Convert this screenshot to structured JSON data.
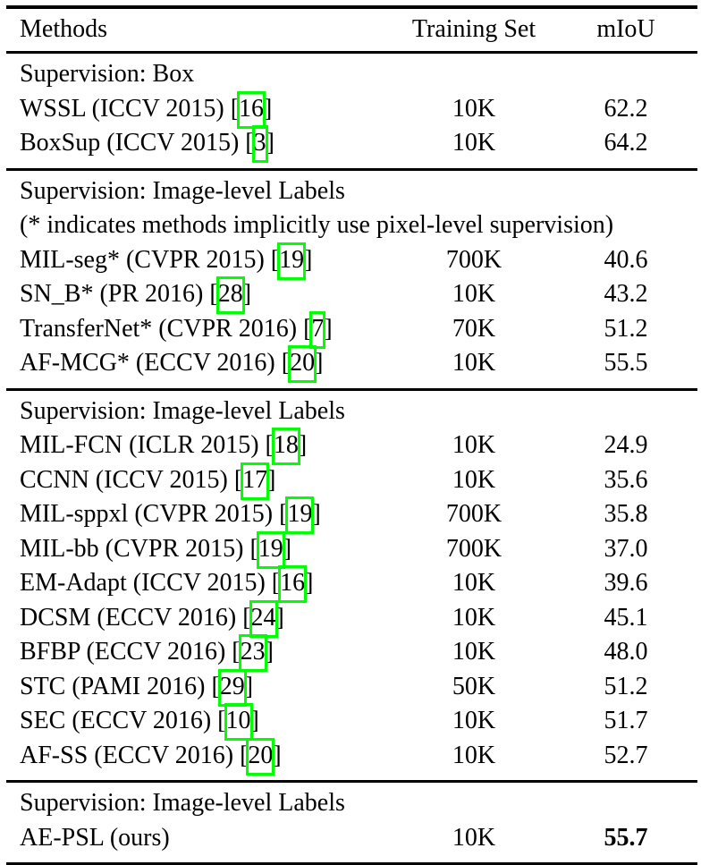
{
  "page": {
    "background": "#ffffff",
    "text_color": "#000000"
  },
  "table": {
    "columns": [
      "Methods",
      "Training Set",
      "mIoU"
    ],
    "citation_box_color": "#00ff00",
    "citation_brackets": [
      "[",
      "]"
    ],
    "sections": [
      {
        "header": "Supervision: Box",
        "rows": [
          {
            "method": "WSSL (ICCV 2015)",
            "cite": "16",
            "training_set": "10K",
            "miou": "62.2"
          },
          {
            "method": "BoxSup (ICCV 2015)",
            "cite": "3",
            "training_set": "10K",
            "miou": "64.2"
          }
        ]
      },
      {
        "header": "Supervision: Image-level Labels",
        "note": "(* indicates methods implicitly use pixel-level supervision)",
        "rows": [
          {
            "method": "MIL-seg* (CVPR 2015)",
            "cite": "19",
            "training_set": "700K",
            "miou": "40.6"
          },
          {
            "method": "SN_B* (PR 2016)",
            "cite": "28",
            "training_set": "10K",
            "miou": "43.2"
          },
          {
            "method": "TransferNet* (CVPR 2016)",
            "cite": "7",
            "training_set": "70K",
            "miou": "51.2"
          },
          {
            "method": "AF-MCG* (ECCV 2016)",
            "cite": "20",
            "training_set": "10K",
            "miou": "55.5"
          }
        ]
      },
      {
        "header": "Supervision: Image-level Labels",
        "rows": [
          {
            "method": "MIL-FCN (ICLR 2015)",
            "cite": "18",
            "training_set": "10K",
            "miou": "24.9"
          },
          {
            "method": "CCNN (ICCV 2015)",
            "cite": "17",
            "training_set": "10K",
            "miou": "35.6"
          },
          {
            "method": "MIL-sppxl (CVPR 2015)",
            "cite": "19",
            "training_set": "700K",
            "miou": "35.8"
          },
          {
            "method": "MIL-bb (CVPR 2015)",
            "cite": "19",
            "training_set": "700K",
            "miou": "37.0"
          },
          {
            "method": "EM-Adapt (ICCV 2015)",
            "cite": "16",
            "training_set": "10K",
            "miou": "39.6"
          },
          {
            "method": "DCSM (ECCV 2016)",
            "cite": "24",
            "training_set": "10K",
            "miou": "45.1"
          },
          {
            "method": "BFBP (ECCV 2016)",
            "cite": "23",
            "training_set": "10K",
            "miou": "48.0"
          },
          {
            "method": "STC (PAMI 2016)",
            "cite": "29",
            "training_set": "50K",
            "miou": "51.2"
          },
          {
            "method": "SEC (ECCV 2016)",
            "cite": "10",
            "training_set": "10K",
            "miou": "51.7"
          },
          {
            "method": "AF-SS (ECCV 2016)",
            "cite": "20",
            "training_set": "10K",
            "miou": "52.7"
          }
        ]
      },
      {
        "header": "Supervision: Image-level Labels",
        "rows": [
          {
            "method": "AE-PSL (ours)",
            "cite": null,
            "training_set": "10K",
            "miou": "55.7",
            "miou_bold": true
          }
        ]
      }
    ]
  }
}
